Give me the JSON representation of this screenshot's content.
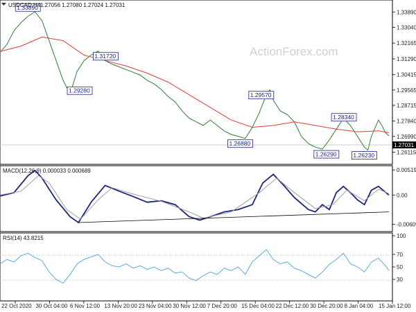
{
  "price_header": {
    "symbol_tf": "USDCAD,H4",
    "ohlc": "1.27056 1.27080 1.27024 1.27031"
  },
  "macd_header": "MACD(12,26,9) 0.000033 0.000689",
  "rsi_header": "RSI(14) 43.8215",
  "watermark": "ActionForex.com",
  "colors": {
    "price_line": "#2e7d32",
    "ma_line": "#e53935",
    "macd_line": "#1a237e",
    "signal_line": "#9e9e9e",
    "rsi_line": "#4aa3df",
    "trendline": "#000000",
    "current_tag": "#000000"
  },
  "current_price_label": "1.27031",
  "chart_data": [
    {
      "type": "line",
      "panel": "price",
      "ylim": [
        1.256,
        1.344
      ],
      "y_ticks": [
        "1.33890",
        "1.33040",
        "1.32165",
        "1.31290",
        "1.30415",
        "1.29565",
        "1.28715",
        "1.27840",
        "1.26990",
        "1.26115"
      ],
      "x_ticks": [
        "22 Oct 2020",
        "30 Oct 04:00",
        "6 Nov 12:00",
        "13 Nov 20:00",
        "23 Nov 04:00",
        "30 Nov 12:00",
        "7 Dec 20:00",
        "15 Dec 04:00",
        "22 Dec 12:00",
        "30 Dec 20:00",
        "8 Jan 04:00",
        "15 Jan 12:00"
      ],
      "series": [
        {
          "points": [
            [
              0,
              1.3165
            ],
            [
              10,
              1.321
            ],
            [
              20,
              1.3285
            ],
            [
              30,
              1.333
            ],
            [
              40,
              1.3365
            ],
            [
              50,
              1.339
            ],
            [
              60,
              1.334
            ],
            [
              70,
              1.323
            ],
            [
              80,
              1.312
            ],
            [
              90,
              1.301
            ],
            [
              100,
              1.2935
            ],
            [
              110,
              1.306
            ],
            [
              120,
              1.312
            ],
            [
              130,
              1.315
            ],
            [
              140,
              1.3172
            ],
            [
              150,
              1.312
            ],
            [
              160,
              1.31
            ],
            [
              170,
              1.3085
            ],
            [
              180,
              1.307
            ],
            [
              190,
              1.3055
            ],
            [
              200,
              1.304
            ],
            [
              210,
              1.301
            ],
            [
              220,
              1.299
            ],
            [
              230,
              1.296
            ],
            [
              240,
              1.292
            ],
            [
              250,
              1.289
            ],
            [
              260,
              1.284
            ],
            [
              270,
              1.28
            ],
            [
              280,
              1.278
            ],
            [
              290,
              1.276
            ],
            [
              300,
              1.279
            ],
            [
              310,
              1.276
            ],
            [
              320,
              1.273
            ],
            [
              330,
              1.271
            ],
            [
              340,
              1.27
            ],
            [
              350,
              1.2688
            ],
            [
              360,
              1.275
            ],
            [
              370,
              1.283
            ],
            [
              380,
              1.293
            ],
            [
              385,
              1.2957
            ],
            [
              390,
              1.29
            ],
            [
              400,
              1.284
            ],
            [
              410,
              1.282
            ],
            [
              420,
              1.278
            ],
            [
              430,
              1.27
            ],
            [
              440,
              1.266
            ],
            [
              450,
              1.264
            ],
            [
              460,
              1.2629
            ],
            [
              470,
              1.268
            ],
            [
              480,
              1.274
            ],
            [
              490,
              1.28
            ],
            [
              500,
              1.276
            ],
            [
              510,
              1.27
            ],
            [
              520,
              1.264
            ],
            [
              525,
              1.2623
            ],
            [
              530,
              1.27
            ],
            [
              540,
              1.279
            ],
            [
              545,
              1.276
            ],
            [
              550,
              1.272
            ],
            [
              555,
              1.2703
            ]
          ]
        },
        {
          "points": [
            [
              0,
              1.317
            ],
            [
              30,
              1.32
            ],
            [
              60,
              1.325
            ],
            [
              90,
              1.323
            ],
            [
              120,
              1.315
            ],
            [
              150,
              1.312
            ],
            [
              180,
              1.309
            ],
            [
              210,
              1.305
            ],
            [
              240,
              1.3
            ],
            [
              270,
              1.293
            ],
            [
              300,
              1.286
            ],
            [
              330,
              1.279
            ],
            [
              360,
              1.275
            ],
            [
              390,
              1.276
            ],
            [
              420,
              1.278
            ],
            [
              450,
              1.276
            ],
            [
              480,
              1.274
            ],
            [
              510,
              1.2725
            ],
            [
              540,
              1.273
            ],
            [
              555,
              1.272
            ]
          ]
        }
      ],
      "annotations": [
        {
          "label": "1.33890",
          "x": 22,
          "y": 1.3389
        },
        {
          "label": "1.31720",
          "x": 133,
          "y": 1.3172
        },
        {
          "label": "1.29280",
          "x": 96,
          "y": 1.2928
        },
        {
          "label": "1.29570",
          "x": 355,
          "y": 1.2957
        },
        {
          "label": "1.26880",
          "x": 325,
          "y": 1.2688
        },
        {
          "label": "1.28340",
          "x": 473,
          "y": 1.2834
        },
        {
          "label": "1.26290",
          "x": 448,
          "y": 1.2629
        },
        {
          "label": "1.26230",
          "x": 502,
          "y": 1.2623
        }
      ]
    },
    {
      "type": "line",
      "panel": "macd",
      "ylim": [
        -0.007,
        0.0055
      ],
      "y_ticks": [
        "0.005195",
        "0.00",
        "-0.006093"
      ],
      "series": [
        {
          "points": [
            [
              0,
              -0.0002
            ],
            [
              20,
              0.0005
            ],
            [
              40,
              0.004
            ],
            [
              50,
              0.0051
            ],
            [
              60,
              0.0035
            ],
            [
              80,
              -0.001
            ],
            [
              100,
              -0.0045
            ],
            [
              112,
              -0.0057
            ],
            [
              130,
              -0.0015
            ],
            [
              150,
              0.002
            ],
            [
              170,
              0.0008
            ],
            [
              190,
              -0.0003
            ],
            [
              210,
              -0.0015
            ],
            [
              230,
              -0.0012
            ],
            [
              250,
              -0.002
            ],
            [
              270,
              -0.0045
            ],
            [
              285,
              -0.0052
            ],
            [
              300,
              -0.0045
            ],
            [
              320,
              -0.0035
            ],
            [
              340,
              -0.003
            ],
            [
              360,
              -0.002
            ],
            [
              375,
              0.0025
            ],
            [
              390,
              0.0043
            ],
            [
              405,
              0.002
            ],
            [
              420,
              -0.0005
            ],
            [
              440,
              -0.003
            ],
            [
              450,
              -0.0035
            ],
            [
              460,
              -0.002
            ],
            [
              470,
              -0.003
            ],
            [
              480,
              0.0005
            ],
            [
              490,
              0.0018
            ],
            [
              500,
              0.0005
            ],
            [
              510,
              -0.001
            ],
            [
              520,
              -0.002
            ],
            [
              530,
              0.001
            ],
            [
              540,
              0.0018
            ],
            [
              555,
              0.0
            ]
          ]
        },
        {
          "points": [
            [
              0,
              0.0
            ],
            [
              30,
              0.0008
            ],
            [
              55,
              0.004
            ],
            [
              70,
              0.0025
            ],
            [
              95,
              -0.003
            ],
            [
              115,
              -0.005
            ],
            [
              140,
              -0.001
            ],
            [
              160,
              0.0015
            ],
            [
              190,
              0.0002
            ],
            [
              230,
              -0.0013
            ],
            [
              270,
              -0.0035
            ],
            [
              290,
              -0.0048
            ],
            [
              330,
              -0.0035
            ],
            [
              370,
              0.0005
            ],
            [
              395,
              0.0035
            ],
            [
              420,
              0.0005
            ],
            [
              450,
              -0.0028
            ],
            [
              475,
              -0.002
            ],
            [
              495,
              0.001
            ],
            [
              520,
              -0.0012
            ],
            [
              540,
              0.0012
            ],
            [
              555,
              0.0003
            ]
          ]
        },
        {
          "points": [
            [
              112,
              -0.0057
            ],
            [
              555,
              -0.0035
            ]
          ]
        }
      ]
    },
    {
      "type": "line",
      "panel": "rsi",
      "ylim": [
        0,
        100
      ],
      "y_ticks": [
        "100",
        "70",
        "50",
        "30"
      ],
      "series": [
        {
          "points": [
            [
              0,
              55
            ],
            [
              10,
              62
            ],
            [
              20,
              58
            ],
            [
              30,
              68
            ],
            [
              40,
              72
            ],
            [
              50,
              65
            ],
            [
              60,
              60
            ],
            [
              70,
              42
            ],
            [
              80,
              30
            ],
            [
              90,
              24
            ],
            [
              100,
              38
            ],
            [
              110,
              55
            ],
            [
              120,
              62
            ],
            [
              130,
              66
            ],
            [
              140,
              70
            ],
            [
              150,
              58
            ],
            [
              160,
              52
            ],
            [
              170,
              50
            ],
            [
              180,
              55
            ],
            [
              190,
              48
            ],
            [
              200,
              52
            ],
            [
              210,
              46
            ],
            [
              220,
              50
            ],
            [
              230,
              44
            ],
            [
              240,
              48
            ],
            [
              250,
              40
            ],
            [
              260,
              42
            ],
            [
              270,
              32
            ],
            [
              280,
              28
            ],
            [
              290,
              36
            ],
            [
              300,
              42
            ],
            [
              310,
              38
            ],
            [
              320,
              48
            ],
            [
              330,
              44
            ],
            [
              340,
              50
            ],
            [
              350,
              38
            ],
            [
              360,
              58
            ],
            [
              370,
              68
            ],
            [
              380,
              78
            ],
            [
              390,
              62
            ],
            [
              400,
              55
            ],
            [
              410,
              58
            ],
            [
              420,
              48
            ],
            [
              430,
              44
            ],
            [
              440,
              38
            ],
            [
              450,
              32
            ],
            [
              460,
              42
            ],
            [
              470,
              54
            ],
            [
              480,
              62
            ],
            [
              490,
              72
            ],
            [
              500,
              55
            ],
            [
              510,
              50
            ],
            [
              520,
              42
            ],
            [
              530,
              58
            ],
            [
              540,
              64
            ],
            [
              550,
              52
            ],
            [
              555,
              44
            ]
          ]
        }
      ]
    }
  ]
}
